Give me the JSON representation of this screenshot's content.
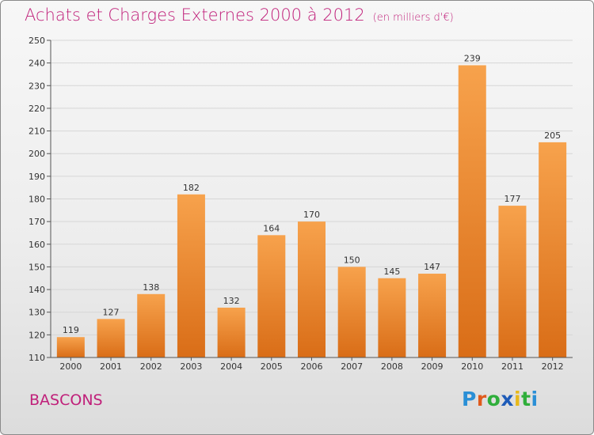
{
  "header": {
    "title": "Achats et Charges Externes 2000 à 2012",
    "unit": "(en milliers d'€)"
  },
  "footer": {
    "commune": "BASCONS",
    "logo_letters": [
      "P",
      "r",
      "o",
      "x",
      "i",
      "t",
      "i"
    ]
  },
  "colors": {
    "bar_top": "#f7a24c",
    "bar_bottom": "#d96d17",
    "title": "#c0207a",
    "grid": "#d6d6d6"
  },
  "chart_data": {
    "type": "bar",
    "title": "Achats et Charges Externes 2000 à 2012",
    "subtitle": "(en milliers d'€)",
    "categories": [
      "2000",
      "2001",
      "2002",
      "2003",
      "2004",
      "2005",
      "2006",
      "2007",
      "2008",
      "2009",
      "2010",
      "2011",
      "2012"
    ],
    "values": [
      119,
      127,
      138,
      182,
      132,
      164,
      170,
      150,
      145,
      147,
      239,
      177,
      205
    ],
    "ylim": [
      110,
      250
    ],
    "yticks": [
      110,
      120,
      130,
      140,
      150,
      160,
      170,
      180,
      190,
      200,
      210,
      220,
      230,
      240,
      250
    ],
    "grid": true,
    "data_labels": true
  }
}
